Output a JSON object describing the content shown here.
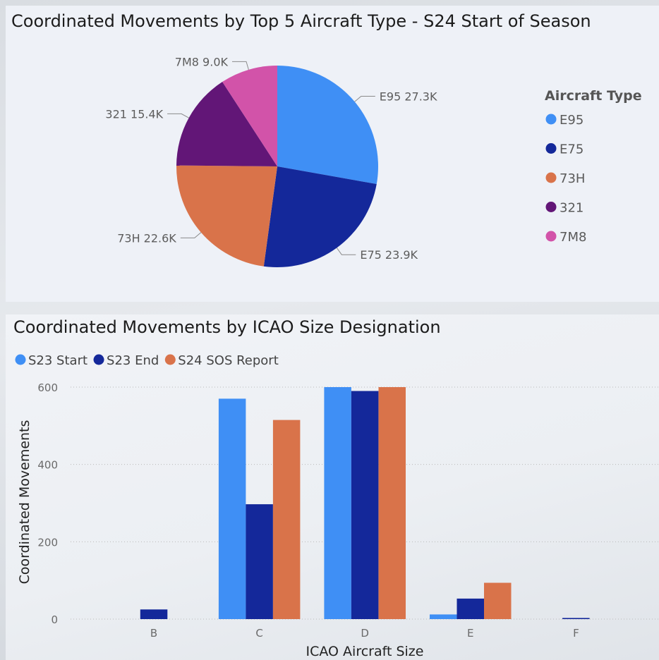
{
  "chart_data": [
    {
      "type": "pie",
      "title": "Coordinated Movements by Top 5 Aircraft Type - S24 Start of Season",
      "legend_title": "Aircraft Type",
      "legend_position": "right",
      "slices": [
        {
          "label": "E95",
          "value": 27.3,
          "display": "E95 27.3K",
          "color": "#3f8ff5"
        },
        {
          "label": "E75",
          "value": 23.9,
          "display": "E75 23.9K",
          "color": "#14289a"
        },
        {
          "label": "73H",
          "value": 22.6,
          "display": "73H 22.6K",
          "color": "#d9734a"
        },
        {
          "label": "321",
          "value": 15.4,
          "display": "321 15.4K",
          "color": "#621677"
        },
        {
          "label": "7M8",
          "value": 9.0,
          "display": "7M8 9.0K",
          "color": "#d253a9"
        }
      ]
    },
    {
      "type": "bar",
      "title": "Coordinated Movements by ICAO Size Designation",
      "xlabel": "ICAO Aircraft Size",
      "ylabel": "Coordinated Movements",
      "ylim": [
        0,
        600
      ],
      "yticks": [
        0,
        200,
        400,
        600
      ],
      "grid": true,
      "legend_position": "top-left",
      "categories": [
        "B",
        "C",
        "D",
        "E",
        "F"
      ],
      "series": [
        {
          "name": "S23 Start",
          "color": "#3f8ff5",
          "values": [
            0,
            570,
            600,
            12,
            0
          ]
        },
        {
          "name": "S23 End",
          "color": "#14289a",
          "values": [
            25,
            297,
            590,
            53,
            3
          ]
        },
        {
          "name": "S24 SOS Report",
          "color": "#d9734a",
          "values": [
            0,
            515,
            600,
            94,
            0
          ]
        }
      ]
    }
  ]
}
